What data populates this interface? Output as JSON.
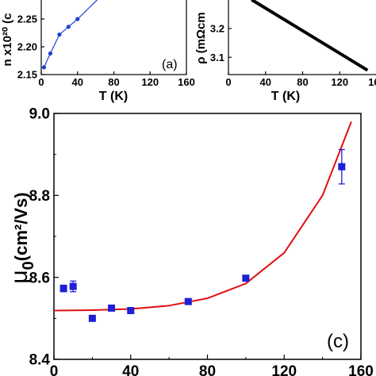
{
  "chart_data": [
    {
      "panel": "(a)",
      "type": "line",
      "ylabel": "n x10²⁰ (c",
      "xlabel": "T (K)",
      "x_ticks": [
        "0",
        "40",
        "80",
        "120",
        "160"
      ],
      "y_ticks": [
        "2.15",
        "2.20",
        "2.25"
      ],
      "xlim": [
        0,
        160
      ],
      "ylim": [
        2.15,
        2.29
      ],
      "series": [
        {
          "x": [
            3,
            10,
            20,
            30,
            40,
            65
          ],
          "y": [
            2.163,
            2.188,
            2.222,
            2.236,
            2.25,
            2.29
          ]
        }
      ],
      "color": "#1f3fd6"
    },
    {
      "panel": "(b)",
      "type": "line",
      "ylabel": "ρ (mΩcm",
      "xlabel": "T (K)",
      "x_ticks": [
        "0",
        "40",
        "80",
        "120",
        "160"
      ],
      "y_ticks": [
        "3.1",
        "3.2"
      ],
      "xlim": [
        0,
        160
      ],
      "ylim": [
        3.04,
        3.31
      ],
      "series": [
        {
          "x": [
            25,
            150
          ],
          "y": [
            3.3,
            3.055
          ]
        }
      ],
      "color": "#000000"
    },
    {
      "panel": "(c)",
      "type": "scatter",
      "ylabel_main": "μ",
      "ylabel_sub": "0",
      "ylabel_rest": "(cm²/Vs)",
      "x_ticks": [
        "0",
        "40",
        "80",
        "120",
        "160"
      ],
      "y_ticks": [
        "8.4",
        "8.6",
        "8.8",
        "9.0"
      ],
      "xlim": [
        0,
        160
      ],
      "ylim": [
        8.4,
        9.0
      ],
      "points": [
        {
          "x": 5,
          "y": 8.573,
          "err": 0.008
        },
        {
          "x": 10,
          "y": 8.578,
          "err": 0.013
        },
        {
          "x": 20,
          "y": 8.5,
          "err": 0.005
        },
        {
          "x": 30,
          "y": 8.525,
          "err": 0.006
        },
        {
          "x": 40,
          "y": 8.519,
          "err": 0.005
        },
        {
          "x": 70,
          "y": 8.541,
          "err": 0.004
        },
        {
          "x": 100,
          "y": 8.598,
          "err": 0.004
        },
        {
          "x": 150,
          "y": 8.87,
          "err": 0.042
        }
      ],
      "fit": {
        "x": [
          0,
          20,
          40,
          60,
          80,
          100,
          120,
          140,
          155
        ],
        "y": [
          8.519,
          8.52,
          8.523,
          8.531,
          8.549,
          8.585,
          8.66,
          8.8,
          8.98
        ]
      },
      "marker_color": "#1f1fd6",
      "fit_color": "#e01010"
    }
  ]
}
